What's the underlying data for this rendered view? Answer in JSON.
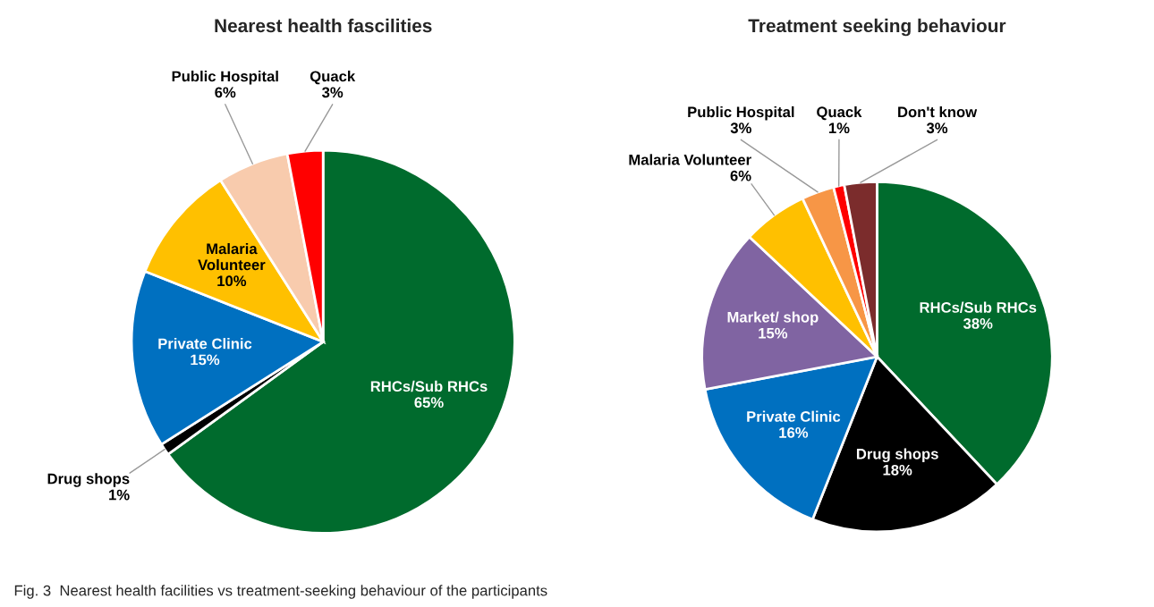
{
  "chart_data": [
    {
      "type": "pie",
      "title": "Nearest health fascilities",
      "categories": [
        "RHCs/Sub RHCs",
        "Drug shops",
        "Private Clinic",
        "Malaria Volunteer",
        "Public Hospital",
        "Quack"
      ],
      "values": [
        65,
        1,
        15,
        10,
        6,
        3
      ],
      "value_labels": [
        "65%",
        "1%",
        "15%",
        "10%",
        "6%",
        "3%"
      ],
      "colors": [
        "#006b2d",
        "#000000",
        "#0070c0",
        "#ffc000",
        "#f8cbad",
        "#ff0000"
      ],
      "annotations": [
        "Fig. 3  Nearest health facilities vs treatment-seeking behaviour of the participants"
      ]
    },
    {
      "type": "pie",
      "title": "Treatment seeking behaviour",
      "categories": [
        "RHCs/Sub RHCs",
        "Drug shops",
        "Private Clinic",
        "Market/ shop",
        "Malaria Volunteer",
        "Public Hospital",
        "Quack",
        "Don't know"
      ],
      "values": [
        38,
        18,
        16,
        15,
        6,
        3,
        1,
        3
      ],
      "value_labels": [
        "38%",
        "18%",
        "16%",
        "15%",
        "6%",
        "3%",
        "1%",
        "3%"
      ],
      "colors": [
        "#006b2d",
        "#000000",
        "#0070c0",
        "#8064a2",
        "#ffc000",
        "#f79646",
        "#ff0000",
        "#7b2c2c"
      ]
    }
  ]
}
